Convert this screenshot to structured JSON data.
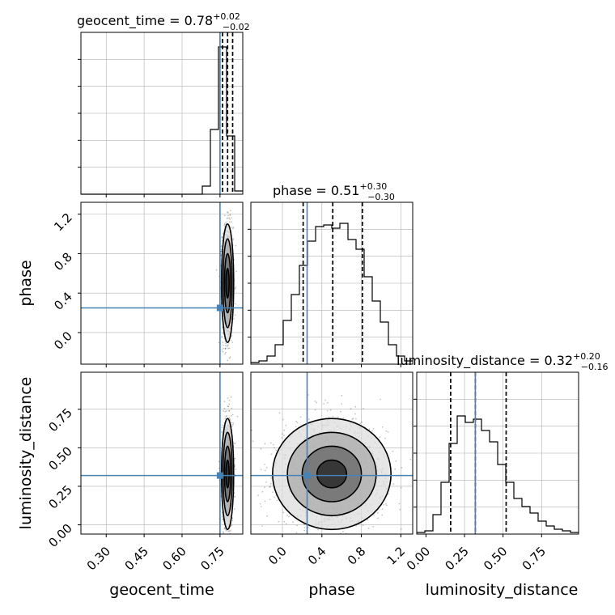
{
  "chart_data": {
    "type": "corner",
    "parameters": [
      "geocent_time",
      "phase",
      "luminosity_distance"
    ],
    "truths": {
      "geocent_time": 0.75,
      "phase": 0.25,
      "luminosity_distance": 0.32
    },
    "colors": {
      "truth": "#4682b4",
      "hist": "#000000",
      "grid": "#b0b0b0",
      "scatter": "#555555"
    },
    "titles": [
      {
        "param": "geocent_time",
        "prefix": "geocent_time = 0.78",
        "plus": "+0.02",
        "minus": "−0.02"
      },
      {
        "param": "phase",
        "prefix": "phase = 0.51",
        "plus": "+0.30",
        "minus": "−0.30"
      },
      {
        "param": "luminosity_distance",
        "prefix": "luminosity_distance = 0.32",
        "plus": "+0.20",
        "minus": "−0.16"
      }
    ],
    "axis_labels": {
      "x": [
        "geocent_time",
        "phase",
        "luminosity_distance"
      ],
      "y": [
        "phase",
        "luminosity_distance"
      ]
    },
    "ranges": {
      "geocent_time": [
        0.2,
        0.84
      ],
      "phase": [
        -0.32,
        1.32
      ],
      "luminosity_distance": [
        -0.06,
        0.99
      ]
    },
    "ticks": {
      "geocent_time": [
        "0.30",
        "0.45",
        "0.60",
        "0.75"
      ],
      "phase": [
        "0.0",
        "0.4",
        "0.8",
        "1.2"
      ],
      "luminosity_distance": [
        "0.00",
        "0.25",
        "0.50",
        "0.75"
      ]
    },
    "quantiles": {
      "geocent_time": [
        0.76,
        0.78,
        0.8
      ],
      "phase": [
        0.21,
        0.51,
        0.81
      ],
      "luminosity_distance": [
        0.16,
        0.32,
        0.52
      ]
    },
    "histograms": {
      "geocent_time": {
        "edges": [
          0.2,
          0.232,
          0.264,
          0.296,
          0.328,
          0.36,
          0.392,
          0.424,
          0.456,
          0.488,
          0.52,
          0.552,
          0.584,
          0.616,
          0.648,
          0.68,
          0.712,
          0.744,
          0.776,
          0.808,
          0.84
        ],
        "counts": [
          0,
          0,
          0,
          0,
          0,
          0,
          0,
          0,
          0,
          0,
          0,
          0,
          0,
          0,
          0,
          0.05,
          0.4,
          0.91,
          0.36,
          0.02
        ]
      },
      "phase": {
        "edges": [
          -0.32,
          -0.238,
          -0.156,
          -0.074,
          0.008,
          0.09,
          0.172,
          0.254,
          0.336,
          0.418,
          0.5,
          0.582,
          0.664,
          0.746,
          0.828,
          0.91,
          0.992,
          1.074,
          1.156,
          1.238,
          1.32
        ],
        "counts": [
          0.01,
          0.02,
          0.05,
          0.12,
          0.27,
          0.43,
          0.61,
          0.76,
          0.85,
          0.86,
          0.84,
          0.87,
          0.77,
          0.71,
          0.54,
          0.39,
          0.26,
          0.12,
          0.05,
          0.02
        ]
      },
      "luminosity_distance": {
        "edges": [
          -0.06,
          -0.0075,
          0.045,
          0.0975,
          0.15,
          0.2025,
          0.255,
          0.3075,
          0.36,
          0.4125,
          0.465,
          0.5175,
          0.57,
          0.6225,
          0.675,
          0.7275,
          0.78,
          0.8325,
          0.885,
          0.9375,
          0.99
        ],
        "counts": [
          0.01,
          0.02,
          0.12,
          0.32,
          0.56,
          0.73,
          0.69,
          0.71,
          0.64,
          0.57,
          0.43,
          0.32,
          0.22,
          0.17,
          0.13,
          0.08,
          0.05,
          0.03,
          0.02,
          0.01
        ]
      }
    },
    "posterior": {
      "geocent_time": {
        "mean": 0.78,
        "sd": 0.012
      },
      "phase": {
        "mean": 0.5,
        "sd": 0.3
      },
      "luminosity_distance": {
        "mean": 0.33,
        "sd": 0.18
      }
    }
  }
}
